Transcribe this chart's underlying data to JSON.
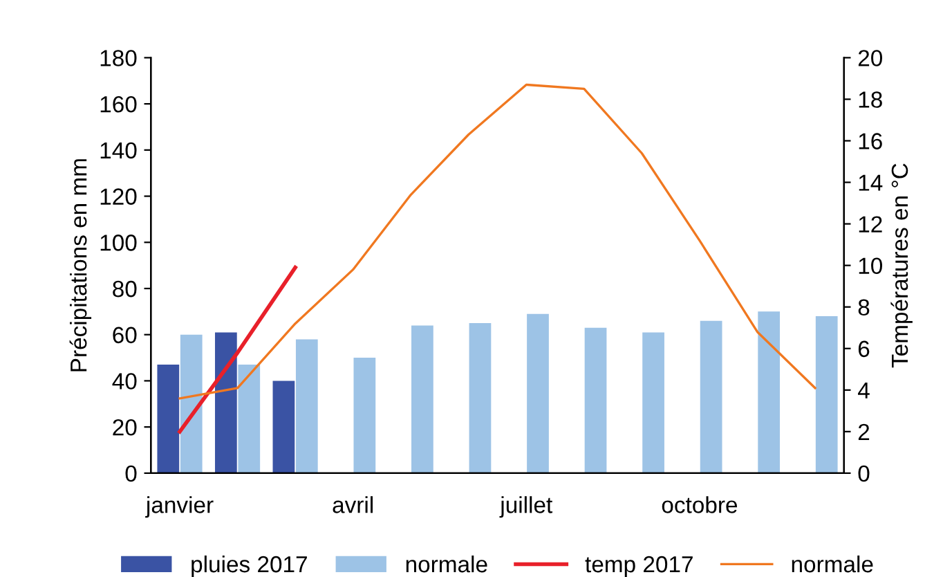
{
  "chart_data": {
    "type": "bar",
    "ylabel": "Précipitations en mm",
    "y2label": "Températures en °C",
    "categories": [
      "janvier",
      null,
      null,
      "avril",
      null,
      null,
      "juillet",
      null,
      null,
      "octobre",
      null,
      null
    ],
    "series": [
      {
        "name": "pluies 2017",
        "color": "#3a53a4",
        "values": [
          47,
          61,
          40,
          null,
          null,
          null,
          null,
          null,
          null,
          null,
          null,
          null
        ]
      },
      {
        "name": "normale",
        "color": "#9dc3e6",
        "values": [
          60,
          47,
          58,
          50,
          64,
          65,
          69,
          63,
          61,
          66,
          70,
          68
        ]
      },
      {
        "name": "temp 2017",
        "type": "line",
        "axis": "y2",
        "color": "#e8202a",
        "values": [
          2,
          5.8,
          9.9,
          null,
          null,
          null,
          null,
          null,
          null,
          null,
          null,
          null
        ]
      },
      {
        "name": "normale",
        "type": "line",
        "axis": "y2",
        "color": "#f07820",
        "values": [
          3.6,
          4.1,
          7.2,
          9.8,
          13.4,
          16.3,
          18.7,
          18.5,
          15.4,
          11.2,
          6.8,
          4.1
        ]
      }
    ],
    "ylim": [
      0,
      180
    ],
    "yticks": [
      0,
      20,
      40,
      60,
      80,
      100,
      120,
      140,
      160,
      180
    ],
    "y2lim": [
      0,
      20
    ],
    "y2ticks": [
      0,
      2,
      4,
      6,
      8,
      10,
      12,
      14,
      16,
      18,
      20
    ],
    "grid": false,
    "legend": "bottom"
  }
}
